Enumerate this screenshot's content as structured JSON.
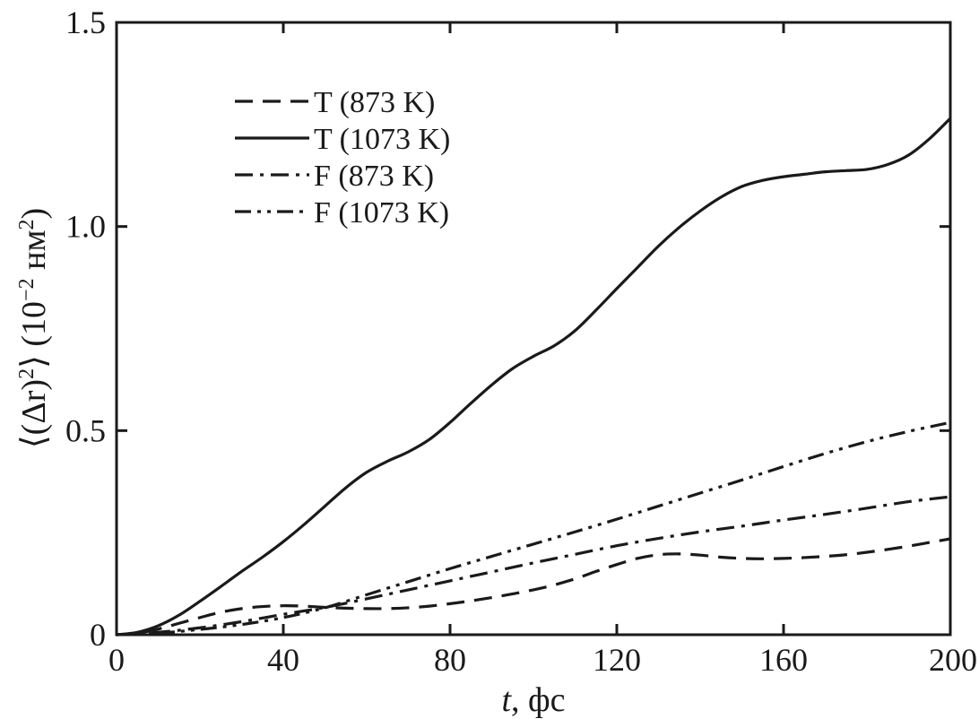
{
  "chart_data": {
    "type": "line",
    "title": "",
    "xlabel_italic": "t",
    "xlabel_rest": ", фс",
    "ylabel_main": "⟨(Δr)",
    "ylabel_sup": "2",
    "ylabel_mid": "⟩ (10",
    "ylabel_sup2": "−2",
    "ylabel_unit": " нм",
    "ylabel_sup3": "2",
    "ylabel_end": ")",
    "xlim": [
      0,
      200
    ],
    "ylim": [
      0,
      1.5
    ],
    "xticks": [
      0,
      40,
      80,
      120,
      160,
      200
    ],
    "xtick_labels": [
      "0",
      "40",
      "80",
      "120",
      "160",
      "200"
    ],
    "yticks": [
      0,
      0.5,
      1.0,
      1.5
    ],
    "ytick_labels": [
      "0",
      "0.5",
      "1.0",
      "1.5"
    ],
    "grid": false,
    "legend_position": "top-left",
    "series": [
      {
        "name": "T (873 K)",
        "style": "dashed",
        "x": [
          0,
          5,
          10,
          15,
          20,
          25,
          30,
          35,
          40,
          45,
          50,
          55,
          60,
          65,
          70,
          75,
          80,
          85,
          90,
          95,
          100,
          105,
          110,
          115,
          120,
          125,
          130,
          135,
          140,
          145,
          150,
          155,
          160,
          165,
          170,
          175,
          180,
          185,
          190,
          195,
          200
        ],
        "y": [
          0,
          0.004,
          0.014,
          0.028,
          0.042,
          0.055,
          0.064,
          0.069,
          0.071,
          0.07,
          0.067,
          0.065,
          0.064,
          0.064,
          0.066,
          0.07,
          0.076,
          0.083,
          0.091,
          0.1,
          0.11,
          0.122,
          0.137,
          0.155,
          0.172,
          0.187,
          0.196,
          0.198,
          0.195,
          0.19,
          0.187,
          0.186,
          0.187,
          0.189,
          0.192,
          0.196,
          0.202,
          0.209,
          0.217,
          0.226,
          0.235
        ]
      },
      {
        "name": "T (1073 K)",
        "style": "solid",
        "x": [
          0,
          5,
          10,
          15,
          20,
          25,
          30,
          35,
          40,
          45,
          50,
          55,
          60,
          65,
          70,
          75,
          80,
          85,
          90,
          95,
          100,
          105,
          110,
          115,
          120,
          125,
          130,
          135,
          140,
          145,
          150,
          155,
          160,
          165,
          170,
          175,
          180,
          185,
          190,
          195,
          200
        ],
        "y": [
          0,
          0.006,
          0.022,
          0.048,
          0.082,
          0.118,
          0.155,
          0.19,
          0.228,
          0.27,
          0.315,
          0.36,
          0.398,
          0.425,
          0.448,
          0.478,
          0.52,
          0.567,
          0.612,
          0.652,
          0.682,
          0.708,
          0.745,
          0.795,
          0.848,
          0.9,
          0.952,
          0.998,
          1.038,
          1.072,
          1.098,
          1.113,
          1.122,
          1.128,
          1.134,
          1.137,
          1.14,
          1.152,
          1.175,
          1.215,
          1.265
        ]
      },
      {
        "name": "F (873 K)",
        "style": "dashdot",
        "x": [
          0,
          10,
          20,
          30,
          40,
          50,
          60,
          70,
          80,
          90,
          100,
          110,
          120,
          130,
          140,
          150,
          160,
          170,
          180,
          190,
          200
        ],
        "y": [
          0,
          0.006,
          0.017,
          0.032,
          0.05,
          0.067,
          0.088,
          0.11,
          0.132,
          0.154,
          0.176,
          0.197,
          0.218,
          0.236,
          0.252,
          0.266,
          0.281,
          0.295,
          0.31,
          0.326,
          0.338
        ]
      },
      {
        "name": "F (1073 K)",
        "style": "dashdotdot",
        "x": [
          0,
          10,
          20,
          30,
          40,
          50,
          60,
          70,
          80,
          90,
          100,
          110,
          120,
          130,
          140,
          150,
          160,
          170,
          180,
          190,
          200
        ],
        "y": [
          0,
          0.004,
          0.013,
          0.025,
          0.042,
          0.066,
          0.098,
          0.13,
          0.162,
          0.192,
          0.222,
          0.252,
          0.283,
          0.315,
          0.347,
          0.379,
          0.412,
          0.444,
          0.473,
          0.498,
          0.52
        ]
      }
    ]
  }
}
